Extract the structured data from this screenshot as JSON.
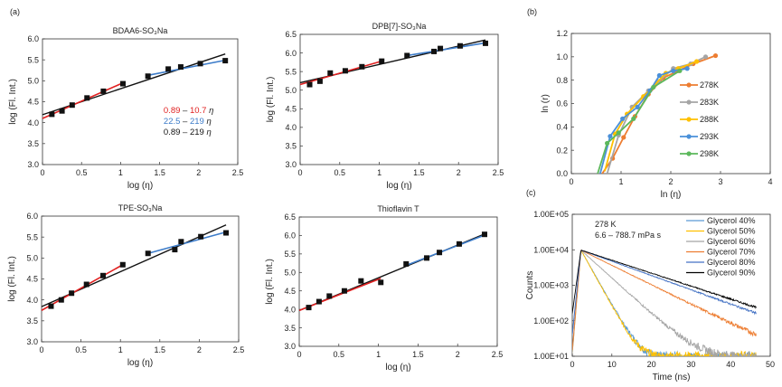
{
  "panels": {
    "a_label": "(a)",
    "b_label": "(b)",
    "c_label": "(c)"
  },
  "chart_data": [
    {
      "id": "bdaa6",
      "type": "scatter",
      "title": "BDAA6-SO₃Na",
      "xlabel": "log (η)",
      "ylabel": "log (Fl. Int.)",
      "xlim": [
        0,
        2.5
      ],
      "ylim": [
        3.0,
        6.0
      ],
      "xticks": [
        "0",
        "0.5",
        "1",
        "1.5",
        "2",
        "2.5"
      ],
      "yticks": [
        "3.0",
        "3.5",
        "4.0",
        "4.5",
        "5.0",
        "5.5",
        "6.0"
      ],
      "points": {
        "x": [
          0.12,
          0.25,
          0.38,
          0.57,
          0.78,
          1.03,
          1.35,
          1.61,
          1.77,
          2.02,
          2.34
        ],
        "y": [
          4.2,
          4.28,
          4.42,
          4.59,
          4.75,
          4.93,
          5.11,
          5.28,
          5.33,
          5.41,
          5.48
        ]
      },
      "fits": [
        {
          "name": "0.89 – 10.7 η",
          "color": "#e02020",
          "x": [
            0,
            1.03
          ],
          "y": [
            4.1,
            4.95
          ]
        },
        {
          "name": "22.5 – 219 η",
          "color": "#3d7cc9",
          "x": [
            1.35,
            2.34
          ],
          "y": [
            5.13,
            5.49
          ]
        },
        {
          "name": "0.89 – 219 η",
          "color": "#111111",
          "x": [
            0,
            2.34
          ],
          "y": [
            4.19,
            5.64
          ]
        }
      ],
      "annotations": [
        {
          "a": "0.89",
          "b": "10.7",
          "color": "#e02020"
        },
        {
          "a": "22.5",
          "b": "219",
          "color": "#3d7cc9"
        },
        {
          "a": "0.89",
          "b": "219",
          "color": "#111111"
        }
      ],
      "annotation_sep": " – ",
      "annotation_eta": " η"
    },
    {
      "id": "dpb7",
      "type": "scatter",
      "title": "DPB[7]-SO₃Na",
      "xlabel": "log (η)",
      "ylabel": "log (Fl. Int.)",
      "xlim": [
        0,
        2.5
      ],
      "ylim": [
        3.0,
        6.5
      ],
      "xticks": [
        "0",
        "0.5",
        "1",
        "1.5",
        "2",
        "2.5"
      ],
      "yticks": [
        "3.0",
        "3.5",
        "4.0",
        "4.5",
        "5.0",
        "5.5",
        "6.0",
        "6.5"
      ],
      "points": {
        "x": [
          0.12,
          0.25,
          0.38,
          0.57,
          0.78,
          1.03,
          1.35,
          1.69,
          1.77,
          2.02,
          2.34
        ],
        "y": [
          5.15,
          5.24,
          5.46,
          5.52,
          5.63,
          5.78,
          5.93,
          6.04,
          6.12,
          6.19,
          6.26
        ]
      },
      "fits": [
        {
          "name": "red",
          "color": "#e02020",
          "x": [
            0,
            1.03
          ],
          "y": [
            5.15,
            5.78
          ]
        },
        {
          "name": "blue",
          "color": "#3d7cc9",
          "x": [
            1.35,
            2.34
          ],
          "y": [
            5.93,
            6.27
          ]
        },
        {
          "name": "black",
          "color": "#111111",
          "x": [
            0,
            2.34
          ],
          "y": [
            5.2,
            6.35
          ]
        }
      ]
    },
    {
      "id": "tpe",
      "type": "scatter",
      "title": "TPE-SO₃Na",
      "xlabel": "log (η)",
      "ylabel": "log (Fl. Int.)",
      "xlim": [
        0,
        2.5
      ],
      "ylim": [
        3.0,
        6.0
      ],
      "xticks": [
        "0",
        "0.5",
        "1",
        "1.5",
        "2",
        "2.5"
      ],
      "yticks": [
        "3.0",
        "3.5",
        "4.0",
        "4.5",
        "5.0",
        "5.5",
        "6.0"
      ],
      "points": {
        "x": [
          0.12,
          0.25,
          0.38,
          0.57,
          0.78,
          1.03,
          1.35,
          1.69,
          1.77,
          2.02,
          2.34
        ],
        "y": [
          3.85,
          4.0,
          4.16,
          4.37,
          4.58,
          4.84,
          5.11,
          5.2,
          5.39,
          5.51,
          5.6
        ]
      },
      "fits": [
        {
          "name": "red",
          "color": "#e02020",
          "x": [
            0,
            1.03
          ],
          "y": [
            3.75,
            4.84
          ]
        },
        {
          "name": "blue",
          "color": "#3d7cc9",
          "x": [
            1.35,
            2.34
          ],
          "y": [
            5.11,
            5.62
          ]
        },
        {
          "name": "black",
          "color": "#111111",
          "x": [
            0,
            2.34
          ],
          "y": [
            3.84,
            5.79
          ]
        }
      ]
    },
    {
      "id": "thioflavin",
      "type": "scatter",
      "title": "Thioflavin T",
      "xlabel": "log (η)",
      "ylabel": "log (Fl. Int.)",
      "xlim": [
        0,
        2.5
      ],
      "ylim": [
        3.0,
        6.5
      ],
      "xticks": [
        "0",
        "0.5",
        "1",
        "1.5",
        "2",
        "2.5"
      ],
      "yticks": [
        "3.0",
        "3.5",
        "4.0",
        "4.5",
        "5.0",
        "5.5",
        "6.0",
        "6.5"
      ],
      "points": {
        "x": [
          0.12,
          0.25,
          0.38,
          0.57,
          0.78,
          1.03,
          1.35,
          1.61,
          1.77,
          2.02,
          2.34
        ],
        "y": [
          4.05,
          4.21,
          4.36,
          4.5,
          4.77,
          4.73,
          5.23,
          5.39,
          5.54,
          5.77,
          6.03
        ]
      },
      "fits": [
        {
          "name": "red",
          "color": "#e02020",
          "x": [
            0,
            1.03
          ],
          "y": [
            3.97,
            4.84
          ]
        },
        {
          "name": "blue",
          "color": "#3d7cc9",
          "x": [
            1.35,
            2.34
          ],
          "y": [
            5.19,
            6.01
          ]
        },
        {
          "name": "black",
          "color": "#111111",
          "x": [
            0,
            2.34
          ],
          "y": [
            3.97,
            6.04
          ]
        }
      ]
    },
    {
      "id": "lnr",
      "type": "line",
      "xlabel": "ln (η)",
      "ylabel": "ln (r)",
      "xlim": [
        0,
        4
      ],
      "ylim": [
        0,
        1.2
      ],
      "xticks": [
        "0",
        "1",
        "2",
        "3",
        "4"
      ],
      "yticks": [
        "0.0",
        "0.2",
        "0.4",
        "0.6",
        "0.8",
        "1.0",
        "1.2"
      ],
      "legend_position": "right",
      "series": [
        {
          "name": "278K",
          "color": "#ed7d31",
          "x": [
            0.62,
            0.83,
            1.05,
            1.28,
            1.55,
            1.85,
            2.15,
            2.45,
            2.9
          ],
          "y": [
            0.0,
            0.13,
            0.31,
            0.49,
            0.68,
            0.82,
            0.88,
            0.94,
            1.01
          ]
        },
        {
          "name": "283K",
          "color": "#a5a5a5",
          "x": [
            0.72,
            0.95,
            1.22,
            1.55,
            1.75,
            2.05,
            2.4,
            2.7
          ],
          "y": [
            0.0,
            0.33,
            0.57,
            0.71,
            0.79,
            0.9,
            0.94,
            1.0
          ]
        },
        {
          "name": "288K",
          "color": "#ffc000",
          "x": [
            0.67,
            0.88,
            1.12,
            1.45,
            1.9,
            2.15,
            2.52
          ],
          "y": [
            0.02,
            0.34,
            0.51,
            0.66,
            0.86,
            0.9,
            0.96
          ]
        },
        {
          "name": "293K",
          "color": "#4a90d9",
          "x": [
            0.58,
            0.78,
            1.03,
            1.33,
            1.58,
            1.77,
            2.05,
            2.33
          ],
          "y": [
            0.0,
            0.32,
            0.47,
            0.57,
            0.71,
            0.84,
            0.88,
            0.9
          ]
        },
        {
          "name": "298K",
          "color": "#5cb85c",
          "x": [
            0.53,
            0.72,
            0.95,
            1.25,
            1.65,
            2.18
          ],
          "y": [
            0.0,
            0.26,
            0.35,
            0.47,
            0.74,
            0.88
          ]
        }
      ]
    },
    {
      "id": "decay",
      "type": "line",
      "xlabel": "Time (ns)",
      "ylabel": "Counts",
      "xlim": [
        0,
        50
      ],
      "ylim": [
        10,
        100000
      ],
      "yscale": "log",
      "xticks": [
        "0",
        "10",
        "20",
        "30",
        "40",
        "50"
      ],
      "yticks": [
        "1.00E+01",
        "1.00E+02",
        "1.00E+03",
        "1.00E+04",
        "1.00E+05"
      ],
      "annotation": [
        "278 K",
        "6.6 – 788.7 mPa s"
      ],
      "legend_position": "top-right",
      "series": [
        {
          "name": "Glycerol 40%",
          "color": "#5b9bd5",
          "peak_time": 2.2,
          "peak": 9800,
          "tau": 2.2,
          "floor": 9
        },
        {
          "name": "Glycerol 50%",
          "color": "#ffc000",
          "peak_time": 2.2,
          "peak": 9800,
          "tau": 2.15,
          "floor": 9
        },
        {
          "name": "Glycerol 60%",
          "color": "#a5a5a5",
          "peak_time": 2.2,
          "peak": 9800,
          "tau": 4.3,
          "floor": 9
        },
        {
          "name": "Glycerol 70%",
          "color": "#ed7d31",
          "peak_time": 2.2,
          "peak": 9800,
          "tau": 7.9,
          "floor": 5
        },
        {
          "name": "Glycerol 80%",
          "color": "#4472c4",
          "peak_time": 2.2,
          "peak": 9800,
          "tau": 10.8,
          "floor": 0
        },
        {
          "name": "Glycerol 90%",
          "color": "#000000",
          "peak_time": 2.2,
          "peak": 9800,
          "tau": 11.9,
          "floor": 0
        }
      ]
    }
  ]
}
